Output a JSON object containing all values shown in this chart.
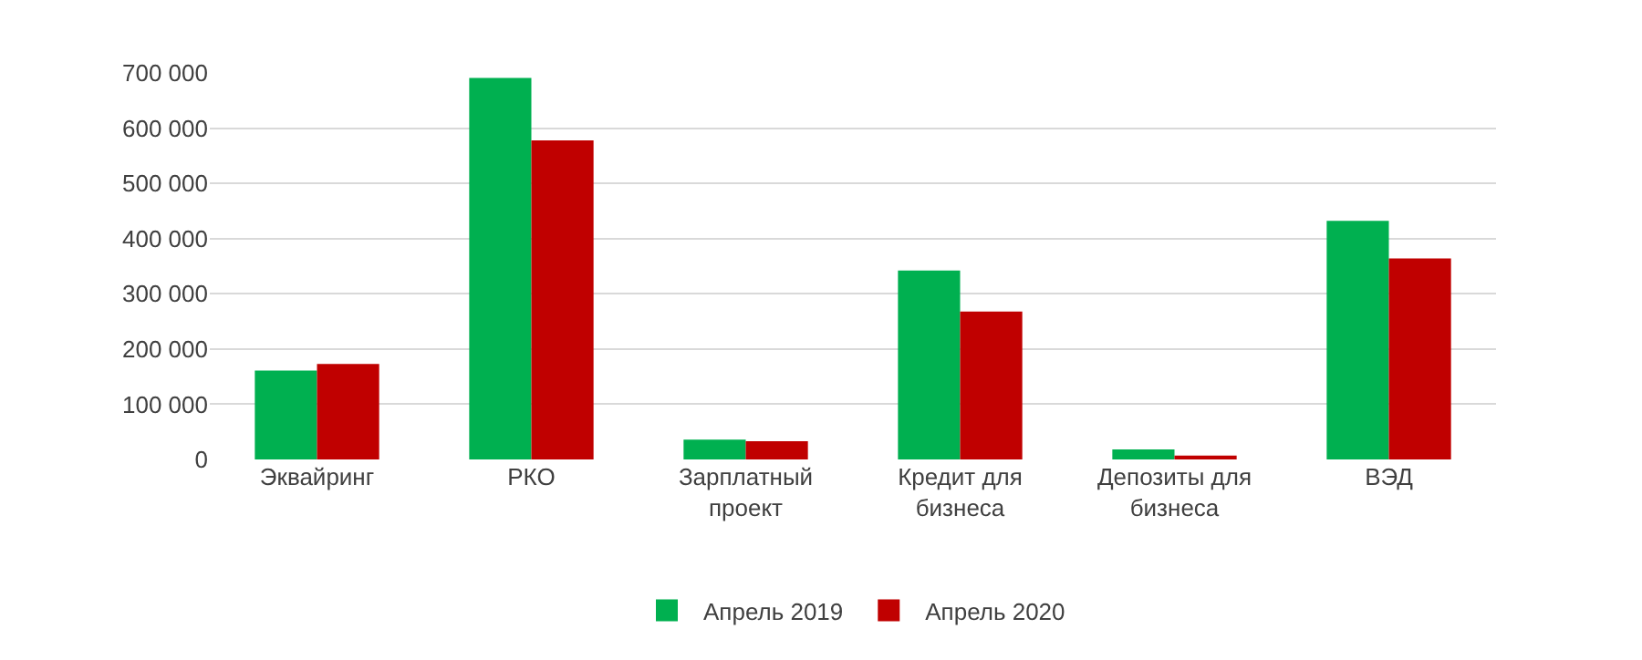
{
  "chart_data": {
    "type": "bar",
    "categories": [
      "Эквайринг",
      "РКО",
      "Зарплатный\nпроект",
      "Кредит для\nбизнеса",
      "Депозиты для\nбизнеса",
      "ВЭД"
    ],
    "series": [
      {
        "name": "Апрель 2019",
        "color": "#00b050",
        "values": [
          161000,
          691000,
          36000,
          342000,
          18000,
          432000
        ]
      },
      {
        "name": "Апрель 2020",
        "color": "#c00000",
        "values": [
          173000,
          578000,
          33000,
          268000,
          7000,
          364000
        ]
      }
    ],
    "ylim": [
      0,
      700000
    ],
    "yticks": [
      {
        "value": 0,
        "label": "0"
      },
      {
        "value": 100000,
        "label": "100 000"
      },
      {
        "value": 200000,
        "label": "200 000"
      },
      {
        "value": 300000,
        "label": "300 000"
      },
      {
        "value": 400000,
        "label": "400 000"
      },
      {
        "value": 500000,
        "label": "500 000"
      },
      {
        "value": 600000,
        "label": "600 000"
      },
      {
        "value": 700000,
        "label": "700 000"
      }
    ],
    "grid": "y",
    "legend": "bottom"
  }
}
